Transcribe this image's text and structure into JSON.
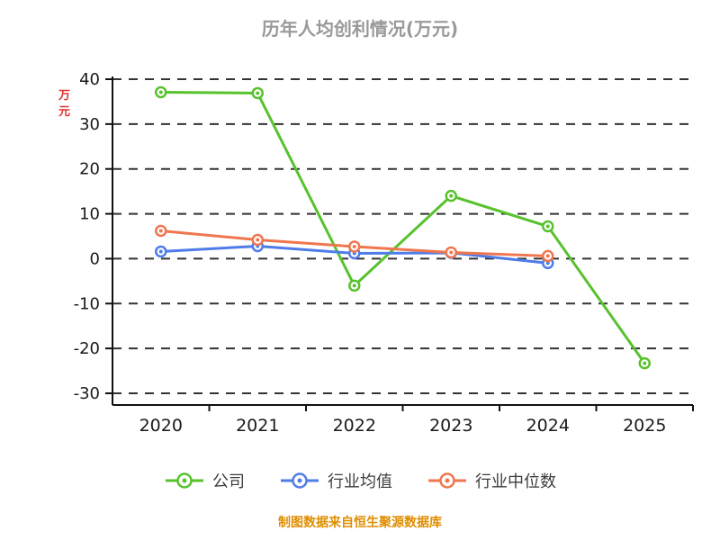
{
  "chart_data": {
    "type": "line",
    "title": "历年人均创利情况(万元)",
    "ylabel": "万元",
    "footer": "制图数据来自恒生聚源数据库",
    "x": [
      "2020",
      "2021",
      "2022",
      "2023",
      "2024",
      "2025"
    ],
    "ylim": [
      -30,
      40
    ],
    "yticks": [
      40,
      30,
      20,
      10,
      0,
      -10,
      -20,
      -30
    ],
    "grid": true,
    "legend_position": "bottom",
    "series": [
      {
        "key": "company",
        "name": "公司",
        "color": "#58c22e",
        "values": [
          37.1,
          36.9,
          -6.0,
          14.0,
          7.2,
          -23.3
        ]
      },
      {
        "key": "industry-mean",
        "name": "行业均值",
        "color": "#4e7ce9",
        "values": [
          1.6,
          2.8,
          1.2,
          1.3,
          -1.0,
          null
        ]
      },
      {
        "key": "industry-median",
        "name": "行业中位数",
        "color": "#f0764e",
        "values": [
          6.2,
          4.2,
          2.7,
          1.4,
          0.6,
          null
        ]
      }
    ],
    "colors": {
      "title": "#999999",
      "ylabel": "#e03131",
      "footer": "#df8e00",
      "axis": "#111111",
      "grid": "#333333",
      "tick_text": "#1a1a1a",
      "legend_text": "#3d3d3d"
    }
  }
}
